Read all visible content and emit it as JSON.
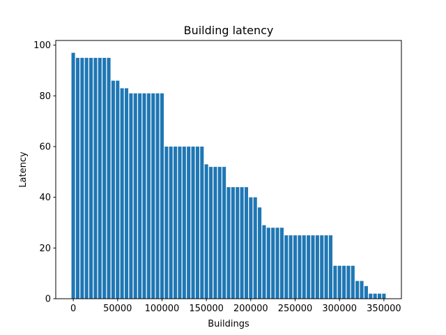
{
  "chart_data": {
    "type": "bar",
    "title": "Building latency",
    "xlabel": "Buildings",
    "ylabel": "Latency",
    "x": [
      0,
      5000,
      10000,
      15000,
      20000,
      25000,
      30000,
      35000,
      40000,
      45000,
      50000,
      55000,
      60000,
      65000,
      70000,
      75000,
      80000,
      85000,
      90000,
      95000,
      100000,
      105000,
      110000,
      115000,
      120000,
      125000,
      130000,
      135000,
      140000,
      145000,
      150000,
      155000,
      160000,
      165000,
      170000,
      175000,
      180000,
      185000,
      190000,
      195000,
      200000,
      205000,
      210000,
      215000,
      220000,
      225000,
      230000,
      235000,
      240000,
      245000,
      250000,
      255000,
      260000,
      265000,
      270000,
      275000,
      280000,
      285000,
      290000,
      295000,
      300000,
      305000,
      310000,
      315000,
      320000,
      325000,
      330000,
      335000,
      340000,
      345000,
      350000
    ],
    "values": [
      97,
      95,
      95,
      95,
      95,
      95,
      95,
      95,
      95,
      86,
      86,
      83,
      83,
      81,
      81,
      81,
      81,
      81,
      81,
      81,
      81,
      60,
      60,
      60,
      60,
      60,
      60,
      60,
      60,
      60,
      53,
      52,
      52,
      52,
      52,
      44,
      44,
      44,
      44,
      44,
      40,
      40,
      36,
      29,
      28,
      28,
      28,
      28,
      25,
      25,
      25,
      25,
      25,
      25,
      25,
      25,
      25,
      25,
      25,
      13,
      13,
      13,
      13,
      13,
      7,
      7,
      5,
      2,
      2,
      2,
      2
    ],
    "bar_width": 4000,
    "color": "#1f77b4",
    "xlim": [
      -19700,
      369700
    ],
    "xticks": [
      0,
      50000,
      100000,
      150000,
      200000,
      250000,
      300000,
      350000
    ],
    "ylim": [
      0,
      101.85
    ],
    "yticks": [
      0,
      20,
      40,
      60,
      80,
      100
    ]
  }
}
